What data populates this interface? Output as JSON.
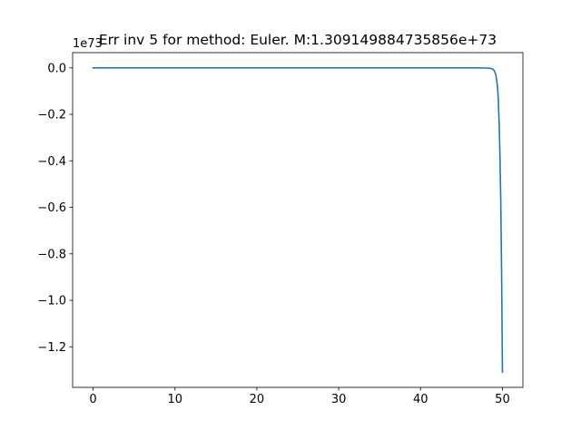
{
  "chart_data": {
    "type": "line",
    "title": "Err inv 5 for method: Euler. M:1.309149884735856e+73",
    "xlabel": "",
    "ylabel": "",
    "y_offset_label": "1e73",
    "xlim": [
      -2.5,
      52.5
    ],
    "ylim": [
      -1.3745,
      0.0655
    ],
    "x_ticks": [
      0,
      10,
      20,
      30,
      40,
      50
    ],
    "x_tick_labels": [
      "0",
      "10",
      "20",
      "30",
      "40",
      "50"
    ],
    "y_ticks": [
      0.0,
      -0.2,
      -0.4,
      -0.6,
      -0.8,
      -1.0,
      -1.2
    ],
    "y_tick_labels": [
      "0.0",
      "−0.2",
      "−0.4",
      "−0.6",
      "−0.8",
      "−1.0",
      "−1.2"
    ],
    "grid": false,
    "series": [
      {
        "color": "#1f77b4",
        "x": [
          0,
          10,
          20,
          30,
          40,
          45,
          47,
          48,
          48.5,
          48.8,
          49.0,
          49.2,
          49.4,
          49.5,
          49.6,
          49.7,
          49.8,
          49.9,
          50.0
        ],
        "y": [
          0,
          0,
          0,
          0,
          0,
          0,
          -0.0002,
          -0.0008,
          -0.002,
          -0.005,
          -0.012,
          -0.03,
          -0.08,
          -0.14,
          -0.24,
          -0.38,
          -0.58,
          -0.88,
          -1.309
        ]
      }
    ]
  }
}
